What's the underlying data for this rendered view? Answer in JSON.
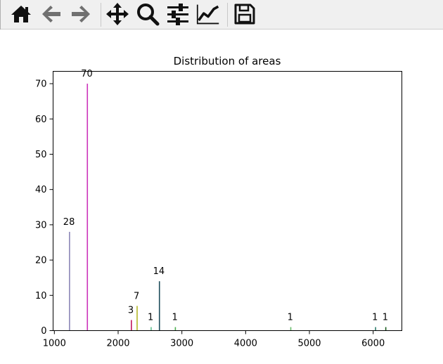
{
  "toolbar": {
    "buttons": [
      {
        "name": "home-button",
        "icon": "home-icon"
      },
      {
        "name": "back-button",
        "icon": "arrow-left-icon"
      },
      {
        "name": "forward-button",
        "icon": "arrow-right-icon"
      },
      {
        "name": "pan-button",
        "icon": "move-icon"
      },
      {
        "name": "zoom-button",
        "icon": "zoom-icon"
      },
      {
        "name": "subplots-button",
        "icon": "sliders-icon"
      },
      {
        "name": "edit-axis-button",
        "icon": "line-chart-icon"
      },
      {
        "name": "save-button",
        "icon": "floppy-disk-icon"
      }
    ]
  },
  "chart_data": {
    "type": "bar",
    "title": "Distribution of areas",
    "xlabel": "",
    "ylabel": "",
    "xlim": [
      980,
      6450
    ],
    "ylim": [
      0,
      73.5
    ],
    "xticks": [
      1000,
      2000,
      3000,
      4000,
      5000,
      6000
    ],
    "yticks": [
      0,
      10,
      20,
      30,
      40,
      50,
      60,
      70
    ],
    "grid": false,
    "bars": [
      {
        "x": 1240,
        "value": 28,
        "label": "28",
        "color": "#8a86b6"
      },
      {
        "x": 1520,
        "value": 70,
        "label": "70",
        "color": "#cc33bb"
      },
      {
        "x": 2210,
        "value": 3,
        "label": "3",
        "color": "#c2185b"
      },
      {
        "x": 2300,
        "value": 7,
        "label": "7",
        "color": "#b5b829"
      },
      {
        "x": 2520,
        "value": 1,
        "label": "1",
        "color": "#5fbf8f"
      },
      {
        "x": 2650,
        "value": 14,
        "label": "14",
        "color": "#1f4e5c"
      },
      {
        "x": 2900,
        "value": 1,
        "label": "1",
        "color": "#4caf50"
      },
      {
        "x": 4710,
        "value": 1,
        "label": "1",
        "color": "#66bb6a"
      },
      {
        "x": 6040,
        "value": 1,
        "label": "1",
        "color": "#2e7d6b"
      },
      {
        "x": 6200,
        "value": 1,
        "label": "1",
        "color": "#1b5e20"
      }
    ]
  }
}
